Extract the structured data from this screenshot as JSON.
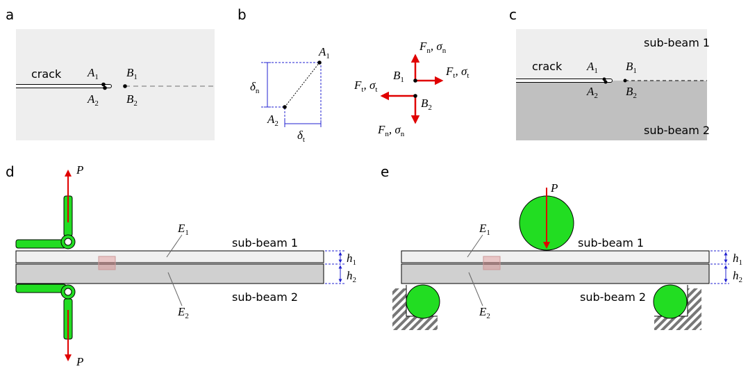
{
  "panels": {
    "a": {
      "label": "a",
      "crack": "crack",
      "A1": [
        "A",
        "1"
      ],
      "A2": [
        "A",
        "2"
      ],
      "B1": [
        "B",
        "1"
      ],
      "B2": [
        "B",
        "2"
      ]
    },
    "b": {
      "label": "b",
      "delta_n": [
        "δ",
        "n"
      ],
      "delta_t": [
        "δ",
        "t"
      ],
      "A1": [
        "A",
        "1"
      ],
      "A2": [
        "A",
        "2"
      ],
      "B1": [
        "B",
        "1"
      ],
      "B2": [
        "B",
        "2"
      ],
      "force_top": [
        "F",
        "n",
        ", σ",
        "n"
      ],
      "force_right": [
        "F",
        "t",
        ", σ",
        "t"
      ],
      "force_left": [
        "F",
        "t",
        ", σ",
        "t"
      ],
      "force_bottom": [
        "F",
        "n",
        ", σ",
        "n"
      ]
    },
    "c": {
      "label": "c",
      "crack": "crack",
      "sub_beam_1": "sub-beam 1",
      "sub_beam_2": "sub-beam 2",
      "A1": [
        "A",
        "1"
      ],
      "A2": [
        "A",
        "2"
      ],
      "B1": [
        "B",
        "1"
      ],
      "B2": [
        "B",
        "2"
      ]
    },
    "d": {
      "label": "d",
      "P_top": [
        "P"
      ],
      "P_bottom": [
        "P"
      ],
      "E1": [
        "E",
        "1"
      ],
      "E2": [
        "E",
        "2"
      ],
      "sub_beam_1": "sub-beam 1",
      "sub_beam_2": "sub-beam 2",
      "h1": [
        "h",
        "1"
      ],
      "h2": [
        "h",
        "2"
      ]
    },
    "e": {
      "label": "e",
      "P": [
        "P"
      ],
      "E1": [
        "E",
        "1"
      ],
      "E2": [
        "E",
        "2"
      ],
      "sub_beam_1": "sub-beam 1",
      "sub_beam_2": "sub-beam 2",
      "h1": [
        "h",
        "1"
      ],
      "h2": [
        "h",
        "2"
      ]
    }
  }
}
